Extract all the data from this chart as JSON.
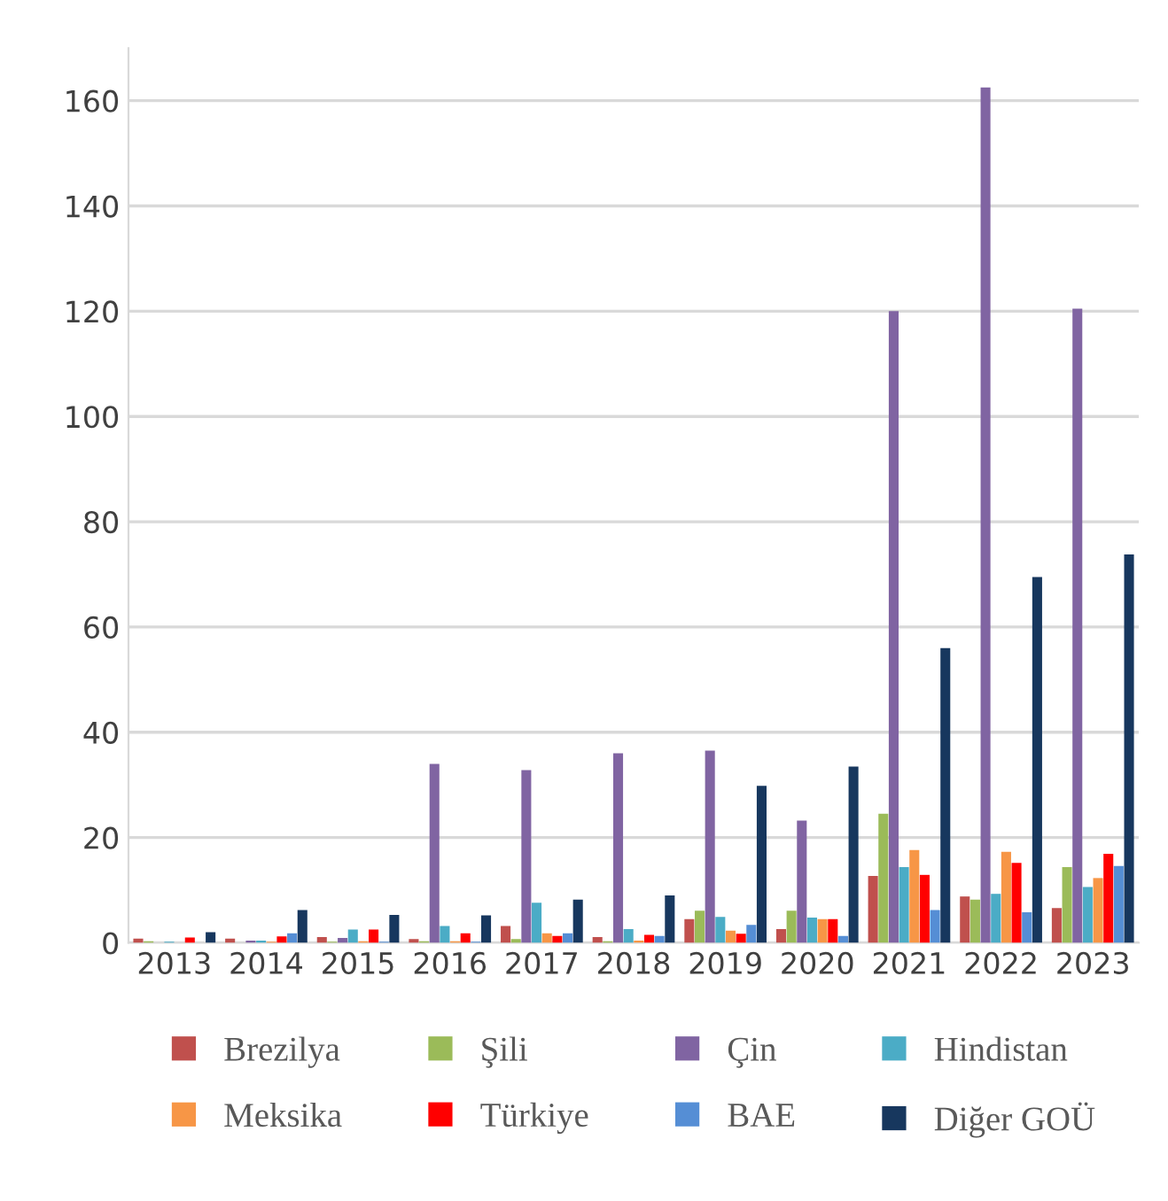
{
  "chart_data": {
    "type": "bar",
    "categories": [
      "2013",
      "2014",
      "2015",
      "2016",
      "2017",
      "2018",
      "2019",
      "2020",
      "2021",
      "2022",
      "2023"
    ],
    "series": [
      {
        "name": "Brezilya",
        "color": "#c0504d",
        "values": [
          0.8,
          0.8,
          1.1,
          0.7,
          3.2,
          1.1,
          4.5,
          2.6,
          12.7,
          8.8,
          6.6
        ]
      },
      {
        "name": "Şili",
        "color": "#9bbb59",
        "values": [
          0.3,
          null,
          0.2,
          0.3,
          0.7,
          0.3,
          6.1,
          6.1,
          24.5,
          8.2,
          14.4
        ]
      },
      {
        "name": "Çin",
        "color": "#8064a2",
        "values": [
          null,
          0.4,
          0.9,
          34,
          32.8,
          36,
          36.5,
          23.2,
          120,
          162.5,
          120.5
        ]
      },
      {
        "name": "Hindistan",
        "color": "#4bacc6",
        "values": [
          0.2,
          0.4,
          2.5,
          3.2,
          7.6,
          2.6,
          4.9,
          4.8,
          14.4,
          9.3,
          10.6
        ]
      },
      {
        "name": "Meksika",
        "color": "#f79646",
        "values": [
          null,
          0.2,
          0.3,
          0.3,
          1.8,
          0.4,
          2.3,
          4.5,
          17.6,
          17.3,
          12.3
        ]
      },
      {
        "name": "Türkiye",
        "color": "#ff0000",
        "values": [
          1,
          1.2,
          2.5,
          1.8,
          1.3,
          1.5,
          1.7,
          4.5,
          12.9,
          15.2,
          16.9
        ]
      },
      {
        "name": "BAE",
        "color": "#558ed5",
        "values": [
          null,
          1.8,
          0.2,
          0.2,
          1.8,
          1.3,
          3.4,
          1.3,
          6.2,
          5.8,
          14.6
        ]
      },
      {
        "name": "Diğer GOÜ",
        "color": "#17375e",
        "values": [
          2,
          6.2,
          5.3,
          5.2,
          8.2,
          9,
          29.8,
          33.5,
          56,
          69.5,
          73.8
        ]
      }
    ],
    "ylim": [
      0,
      170
    ],
    "yticks": [
      0,
      20,
      40,
      60,
      80,
      100,
      120,
      140,
      160
    ],
    "grid": "y",
    "legend": "bottom"
  }
}
